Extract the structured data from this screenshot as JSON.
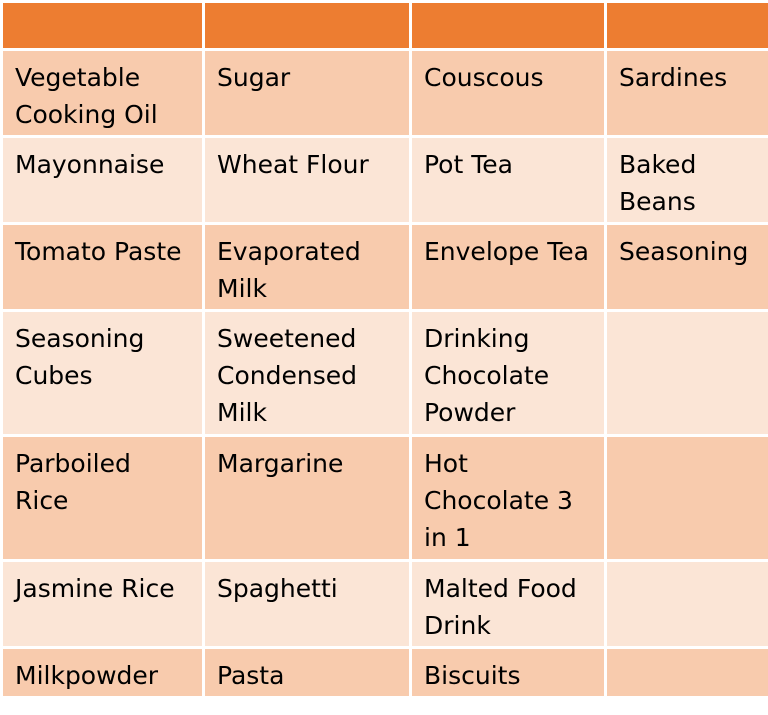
{
  "table": {
    "header": [
      "",
      "",
      "",
      ""
    ],
    "rows": [
      [
        "Vegetable Cooking Oil",
        "Sugar",
        "Couscous",
        "Sardines"
      ],
      [
        "Mayonnaise",
        "Wheat Flour",
        "Pot Tea",
        "Baked Beans"
      ],
      [
        "Tomato Paste",
        "Evaporated Milk",
        "Envelope Tea",
        "Seasoning"
      ],
      [
        "Seasoning Cubes",
        "Sweetened Condensed Milk",
        "Drinking Chocolate Powder",
        ""
      ],
      [
        "Parboiled Rice",
        "Margarine",
        "Hot Chocolate 3 in 1",
        ""
      ],
      [
        "Jasmine Rice",
        "Spaghetti",
        "Malted Food Drink",
        ""
      ],
      [
        "Milkpowder",
        "Pasta",
        "Biscuits",
        ""
      ]
    ]
  },
  "colors": {
    "header": "#ED7D31",
    "row_dark": "#F8CBAD",
    "row_light": "#FBE5D6",
    "border": "#FFFFFF"
  }
}
